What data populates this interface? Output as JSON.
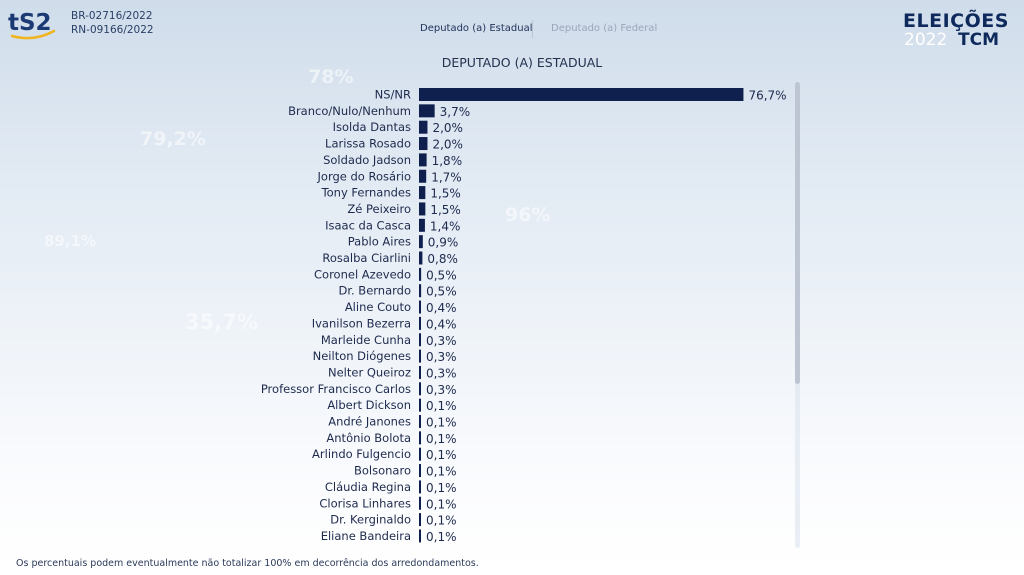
{
  "header": {
    "registration_lines": [
      "BR-02716/2022",
      "RN-09166/2022"
    ],
    "tabs": [
      {
        "label": "Deputado (a) Estadual",
        "active": true
      },
      {
        "label": "Deputado (a) Federal",
        "active": false
      }
    ],
    "brand": {
      "line1": "ELEIÇÕES",
      "year": "2022",
      "tcm": "TCM"
    }
  },
  "background_numbers": [
    "78%",
    "79,2%",
    "89,1%",
    "35,7%",
    "96%"
  ],
  "chart_data": {
    "type": "bar",
    "orientation": "horizontal",
    "title": "DEPUTADO (A) ESTADUAL",
    "categories": [
      "NS/NR",
      "Branco/Nulo/Nenhum",
      "Isolda Dantas",
      "Larissa Rosado",
      "Soldado Jadson",
      "Jorge do Rosário",
      "Tony Fernandes",
      "Zé Peixeiro",
      "Isaac da Casca",
      "Pablo Aires",
      "Rosalba Ciarlini",
      "Coronel Azevedo",
      "Dr. Bernardo",
      "Aline Couto",
      "Ivanilson Bezerra",
      "Marleide Cunha",
      "Neilton Diógenes",
      "Nelter Queiroz",
      "Professor Francisco Carlos",
      "Albert Dickson",
      "André Janones",
      "Antônio Bolota",
      "Arlindo Fulgencio",
      "Bolsonaro",
      "Cláudia Regina",
      "Clorisa Linhares",
      "Dr. Kerginaldo",
      "Eliane Bandeira"
    ],
    "values": [
      76.7,
      3.7,
      2.0,
      2.0,
      1.8,
      1.7,
      1.5,
      1.5,
      1.4,
      0.9,
      0.8,
      0.5,
      0.5,
      0.4,
      0.4,
      0.3,
      0.3,
      0.3,
      0.3,
      0.1,
      0.1,
      0.1,
      0.1,
      0.1,
      0.1,
      0.1,
      0.1,
      0.1
    ],
    "value_labels": [
      "76,7%",
      "3,7%",
      "2,0%",
      "2,0%",
      "1,8%",
      "1,7%",
      "1,5%",
      "1,5%",
      "1,4%",
      "0,9%",
      "0,8%",
      "0,5%",
      "0,5%",
      "0,4%",
      "0,4%",
      "0,3%",
      "0,3%",
      "0,3%",
      "0,3%",
      "0,1%",
      "0,1%",
      "0,1%",
      "0,1%",
      "0,1%",
      "0,1%",
      "0,1%",
      "0,1%",
      "0,1%"
    ],
    "bar_color": "#0f1f4e",
    "grid": false,
    "legend": "none"
  },
  "footnote": "Os percentuais podem eventualmente não totalizar 100% em decorrência dos arredondamentos.",
  "colors": {
    "bar": "#0f1f4e",
    "text": "#1d2a4d",
    "brand": "#0e2a5c"
  }
}
